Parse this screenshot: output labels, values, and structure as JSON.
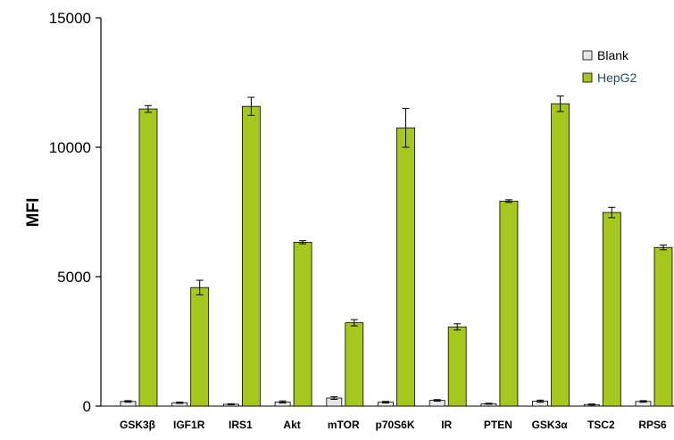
{
  "chart_data": {
    "type": "bar",
    "ylabel": "MFI",
    "xlabel": "",
    "ylim": [
      0,
      15000
    ],
    "yticks": [
      0,
      5000,
      10000,
      15000
    ],
    "ytick_labels": [
      "0",
      "5000",
      "10000",
      "15000"
    ],
    "grid": false,
    "legend_position": "top-right",
    "categories": [
      "GSK3β",
      "IGF1R",
      "IRS1",
      "Akt",
      "mTOR",
      "p70S6K",
      "IR",
      "PTEN",
      "GSK3α",
      "TSC2",
      "RPS6"
    ],
    "series": [
      {
        "name": "Blank",
        "color": "#e6e6e6",
        "values": [
          180,
          130,
          70,
          160,
          310,
          150,
          220,
          90,
          190,
          60,
          180
        ],
        "errors": [
          30,
          25,
          20,
          40,
          50,
          30,
          30,
          20,
          40,
          20,
          30
        ]
      },
      {
        "name": "HepG2",
        "color": "#a6c81e",
        "values": [
          11480,
          4580,
          11580,
          6330,
          3220,
          10750,
          3060,
          7920,
          11680,
          7480,
          6130
        ],
        "errors": [
          130,
          280,
          350,
          60,
          120,
          750,
          120,
          50,
          300,
          200,
          90
        ]
      }
    ],
    "legend_text_colors": [
      "#000000",
      "#1f4e5f"
    ]
  }
}
